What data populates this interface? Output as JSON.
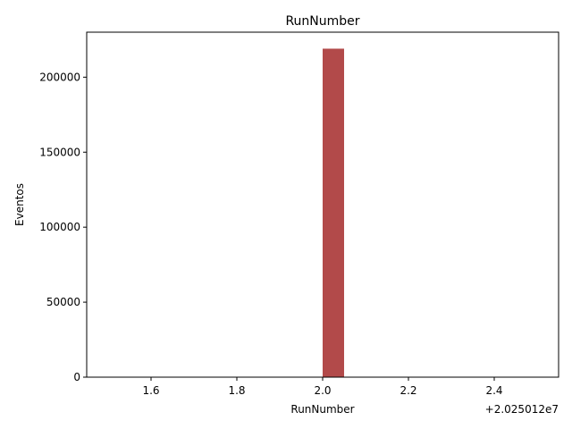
{
  "chart_data": {
    "type": "bar",
    "title": "RunNumber",
    "xlabel": "RunNumber",
    "ylabel": "Eventos",
    "x_offset_text": "+2.025012e7",
    "x_ticks": [
      "1.6",
      "1.8",
      "2.0",
      "2.2",
      "2.4"
    ],
    "y_ticks": [
      "0",
      "50000",
      "100000",
      "150000",
      "200000"
    ],
    "xlim": [
      1.45,
      2.55
    ],
    "ylim": [
      0,
      230000
    ],
    "bars": [
      {
        "x_start": 2.0,
        "x_end": 2.05,
        "value": 219000
      }
    ],
    "bar_color": "#a52a2a",
    "bar_opacity": 0.85,
    "grid": false,
    "legend": "none"
  }
}
